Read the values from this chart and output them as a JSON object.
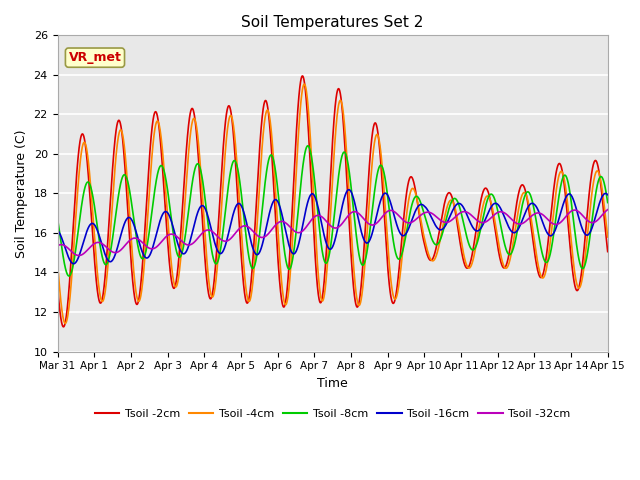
{
  "title": "Soil Temperatures Set 2",
  "xlabel": "Time",
  "ylabel": "Soil Temperature (C)",
  "ylim": [
    10,
    26
  ],
  "background_color": "#e8e8e8",
  "grid_color": "white",
  "annotation_text": "VR_met",
  "annotation_bg": "#ffffcc",
  "annotation_border": "#999944",
  "series": [
    {
      "label": "Tsoil -2cm",
      "color": "#dd0000",
      "lw": 1.2
    },
    {
      "label": "Tsoil -4cm",
      "color": "#ff8800",
      "lw": 1.2
    },
    {
      "label": "Tsoil -8cm",
      "color": "#00cc00",
      "lw": 1.2
    },
    {
      "label": "Tsoil -16cm",
      "color": "#0000cc",
      "lw": 1.2
    },
    {
      "label": "Tsoil -32cm",
      "color": "#bb00bb",
      "lw": 1.2
    }
  ],
  "xtick_labels": [
    "Mar 31",
    "Apr 1",
    "Apr 2",
    "Apr 3",
    "Apr 4",
    "Apr 5",
    "Apr 6",
    "Apr 7",
    "Apr 8",
    "Apr 9",
    "Apr 10",
    "Apr 11",
    "Apr 12",
    "Apr 13",
    "Apr 14",
    "Apr 15"
  ],
  "xtick_positions": [
    0,
    1,
    2,
    3,
    4,
    5,
    6,
    7,
    8,
    9,
    10,
    11,
    12,
    13,
    14,
    15
  ],
  "ytick_labels": [
    "10",
    "12",
    "14",
    "16",
    "18",
    "20",
    "22",
    "24",
    "26"
  ],
  "ytick_positions": [
    10,
    12,
    14,
    16,
    18,
    20,
    22,
    24,
    26
  ]
}
